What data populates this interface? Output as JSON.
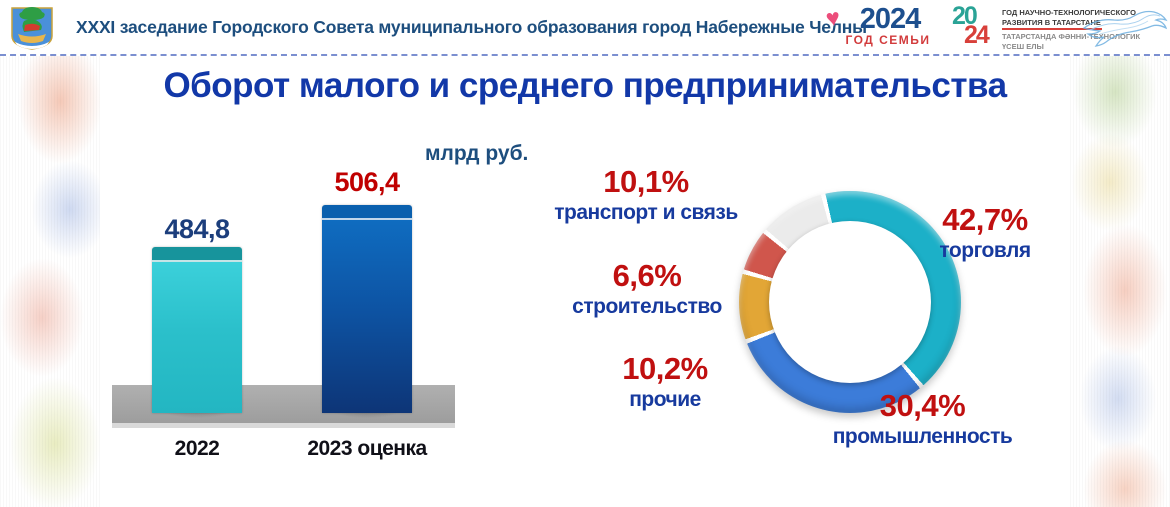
{
  "header": {
    "title": "XXXI заседание Городского Совета муниципального образования город Набережные Челны",
    "family_year_logo": {
      "year": "2024",
      "caption": "ГОД СЕМЬИ",
      "heart_color": "#ec4d7b",
      "year_color": "#1d4f8e",
      "caption_color": "#d23b3c"
    },
    "tech_year_logo": {
      "year_top": "20",
      "year_bottom": "24",
      "line1": "ГОД НАУЧНО-ТЕХНОЛОГИЧЕСКОГО",
      "line2": "РАЗВИТИЯ В ТАТАРСТАНЕ",
      "line3": "ТАТАРСТАНДА ФӘННИ-ТЕХНОЛОГИК",
      "line4": "ҮСЕШ ЕЛЫ"
    }
  },
  "slide": {
    "title": "Оборот малого и среднего предпринимательства"
  },
  "colors": {
    "title_blue": "#1238a8",
    "label_blue": "#173a9e",
    "value_red": "#c00000",
    "header_blue": "#1d4e7e"
  },
  "chart_data": [
    {
      "type": "bar",
      "title": "Оборот малого и среднего предпринимательства",
      "unit_label": "млрд руб.",
      "categories": [
        "2022",
        "2023 оценка"
      ],
      "values": [
        484.8,
        506.4
      ],
      "value_labels": [
        "484,8",
        "506,4"
      ],
      "value_label_colors": [
        "#1c3e7c",
        "#c00000"
      ],
      "ylim": [
        400,
        510
      ],
      "bar_colors": [
        {
          "cap": "#17949c",
          "light": "#3bd0da",
          "mid": "#2bc0cb",
          "dark": "#23b6c2"
        },
        {
          "cap": "#0a60ae",
          "light": "#0f6cc0",
          "mid": "#0d54a4",
          "dark": "#0d3577"
        }
      ]
    },
    {
      "type": "pie",
      "subtype": "donut",
      "start_angle_deg": -14,
      "direction": "clockwise",
      "segments": [
        {
          "label": "торговля",
          "pct": 42.7,
          "pct_label": "42,7%",
          "color": "#1cb0c8"
        },
        {
          "label": "промышленность",
          "pct": 30.4,
          "pct_label": "30,4%",
          "color": "#3c7cd9"
        },
        {
          "label": "прочие",
          "pct": 10.2,
          "pct_label": "10,2%",
          "color": "#e2a636"
        },
        {
          "label": "строительство",
          "pct": 6.6,
          "pct_label": "6,6%",
          "color": "#d0564c"
        },
        {
          "label": "транспорт и связь",
          "pct": 10.1,
          "pct_label": "10,1%",
          "color": "#ebebeb"
        }
      ]
    }
  ]
}
